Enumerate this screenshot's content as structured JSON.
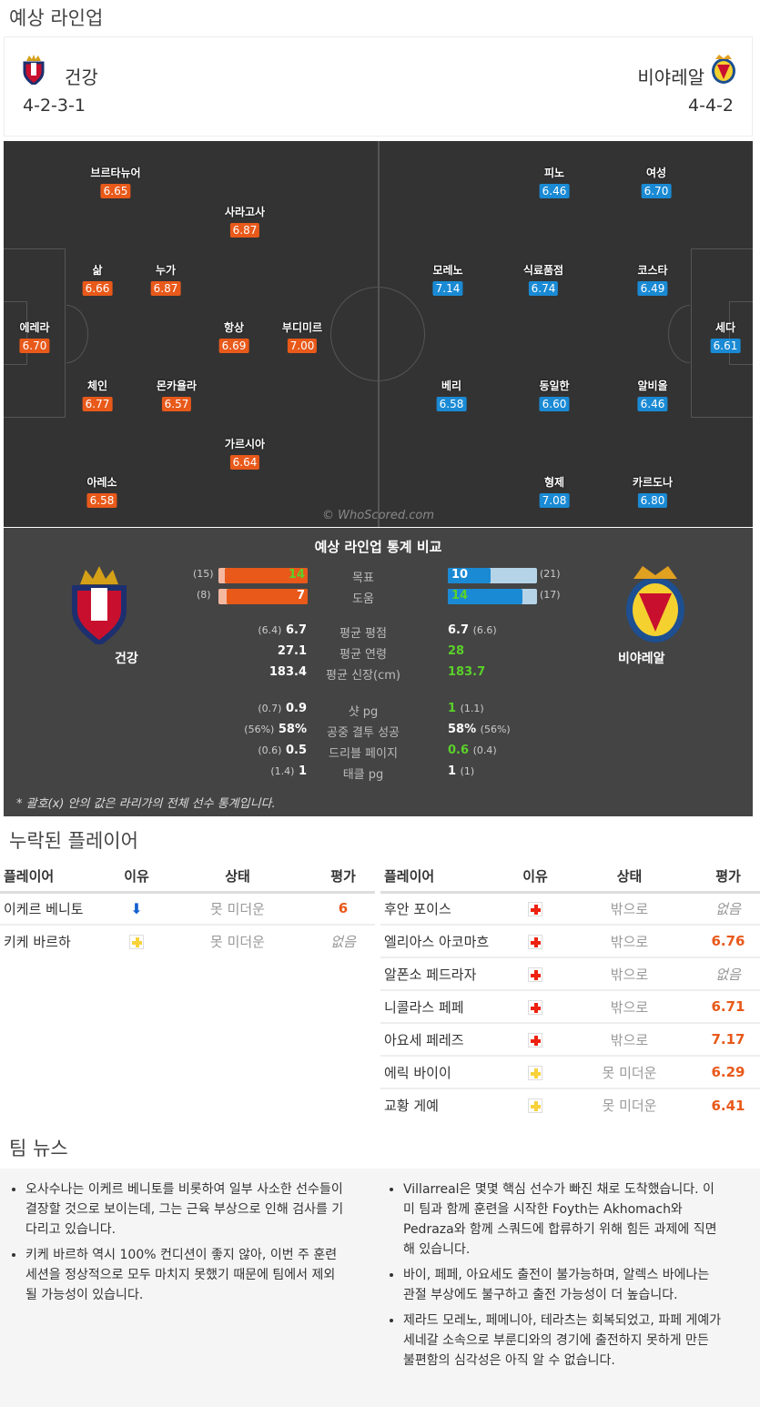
{
  "lineup": {
    "title": "예상 라인업",
    "home": {
      "name": "건강",
      "formation": "4-2-3-1"
    },
    "away": {
      "name": "비야레알",
      "formation": "4-4-2"
    },
    "watermark": "© WhoScored.com",
    "home_players": [
      {
        "name": "브르타뉴어",
        "rating": "6.65"
      },
      {
        "name": "사라고사",
        "rating": "6.87"
      },
      {
        "name": "삶",
        "rating": "6.66"
      },
      {
        "name": "누가",
        "rating": "6.87"
      },
      {
        "name": "에레라",
        "rating": "6.70"
      },
      {
        "name": "항상",
        "rating": "6.69"
      },
      {
        "name": "부디미르",
        "rating": "7.00"
      },
      {
        "name": "체인",
        "rating": "6.77"
      },
      {
        "name": "몬카욜라",
        "rating": "6.57"
      },
      {
        "name": "가르시아",
        "rating": "6.64"
      },
      {
        "name": "아레소",
        "rating": "6.58"
      }
    ],
    "away_players": [
      {
        "name": "피노",
        "rating": "6.46"
      },
      {
        "name": "여성",
        "rating": "6.70"
      },
      {
        "name": "모레노",
        "rating": "7.14"
      },
      {
        "name": "식료품점",
        "rating": "6.74"
      },
      {
        "name": "코스타",
        "rating": "6.49"
      },
      {
        "name": "세다",
        "rating": "6.61"
      },
      {
        "name": "베리",
        "rating": "6.58"
      },
      {
        "name": "동일한",
        "rating": "6.60"
      },
      {
        "name": "알비올",
        "rating": "6.46"
      },
      {
        "name": "형제",
        "rating": "7.08"
      },
      {
        "name": "카르도나",
        "rating": "6.80"
      }
    ]
  },
  "stats": {
    "title": "예상 라인업 통계 비교",
    "home_name": "건강",
    "away_name": "비야레알",
    "goals": {
      "label": "목표",
      "home": "14",
      "home_league": "(15)",
      "away": "10",
      "away_league": "(21)"
    },
    "assists": {
      "label": "도움",
      "home": "7",
      "home_league": "(8)",
      "away": "14",
      "away_league": "(17)"
    },
    "rows": [
      {
        "label": "평균 평점",
        "home": "6.7",
        "home_league": "(6.4)",
        "away": "6.7",
        "away_league": "(6.6)"
      },
      {
        "label": "평균 연령",
        "home": "27.1",
        "home_league": "",
        "away": "28",
        "away_league": ""
      },
      {
        "label": "평균 신장(cm)",
        "home": "183.4",
        "home_league": "",
        "away": "183.7",
        "away_league": ""
      },
      {
        "label": "샷 pg",
        "home": "0.9",
        "home_league": "(0.7)",
        "away": "1",
        "away_league": "(1.1)"
      },
      {
        "label": "공중 결투 성공",
        "home": "58%",
        "home_league": "(56%)",
        "away": "58%",
        "away_league": "(56%)"
      },
      {
        "label": "드리블 페이지",
        "home": "0.5",
        "home_league": "(0.6)",
        "away": "0.6",
        "away_league": "(0.4)"
      },
      {
        "label": "태클 pg",
        "home": "1",
        "home_league": "(1.4)",
        "away": "1",
        "away_league": "(1)"
      }
    ],
    "footnote": "* 괄호(x) 안의 값은 라리가의 전체 선수 통계입니다."
  },
  "missing": {
    "title": "누락된 플레이어",
    "headers": [
      "플레이어",
      "이유",
      "상태",
      "평가"
    ],
    "home": [
      {
        "player": "이케르 베니토",
        "reason": "down-arrow-icon",
        "status": "못 미더운",
        "rating": "6"
      },
      {
        "player": "키케 바르하",
        "reason": "yellow-cross-icon",
        "status": "못 미더운",
        "rating": "없음"
      }
    ],
    "away": [
      {
        "player": "후안 포이스",
        "reason": "red-cross-icon",
        "status": "밖으로",
        "rating": "없음"
      },
      {
        "player": "엘리아스 아코마흐",
        "reason": "red-cross-icon",
        "status": "밖으로",
        "rating": "6.76"
      },
      {
        "player": "알폰소 페드라자",
        "reason": "red-cross-icon",
        "status": "밖으로",
        "rating": "없음"
      },
      {
        "player": "니콜라스 페페",
        "reason": "red-cross-icon",
        "status": "밖으로",
        "rating": "6.71"
      },
      {
        "player": "아요세 페레즈",
        "reason": "red-cross-icon",
        "status": "밖으로",
        "rating": "7.17"
      },
      {
        "player": "에릭 바이이",
        "reason": "yellow-cross-icon",
        "status": "못 미더운",
        "rating": "6.29"
      },
      {
        "player": "교황 게예",
        "reason": "yellow-cross-icon",
        "status": "못 미더운",
        "rating": "6.41"
      }
    ]
  },
  "news": {
    "title": "팀 뉴스",
    "home": [
      "오사수나는 이케르 베니토를 비롯하여 일부 사소한 선수들이 결장할 것으로 보이는데, 그는 근육 부상으로 인해 검사를 기다리고 있습니다.",
      "키케 바르하 역시 100% 컨디션이 좋지 않아, 이번 주 훈련 세션을 정상적으로 모두 마치지 못했기 때문에 팀에서 제외될 가능성이 있습니다."
    ],
    "away": [
      "Villarreal은 몇몇 핵심 선수가 빠진 채로 도착했습니다. 이미 팀과 함께 훈련을 시작한 Foyth는 Akhomach와 Pedraza와 함께 스쿼드에 합류하기 위해 힘든 과제에 직면해 있습니다.",
      "바이, 페페, 아요세도 출전이 불가능하며, 알렉스 바에나는 관절 부상에도 불구하고 출전 가능성이 더 높습니다.",
      "제라드 모레노, 페메니아, 테라츠는 회복되었고, 파페 게예가 세네갈 소속으로 부룬디와의 경기에 출전하지 못하게 만든 불편함의 심각성은 아직 알 수 없습니다."
    ]
  }
}
